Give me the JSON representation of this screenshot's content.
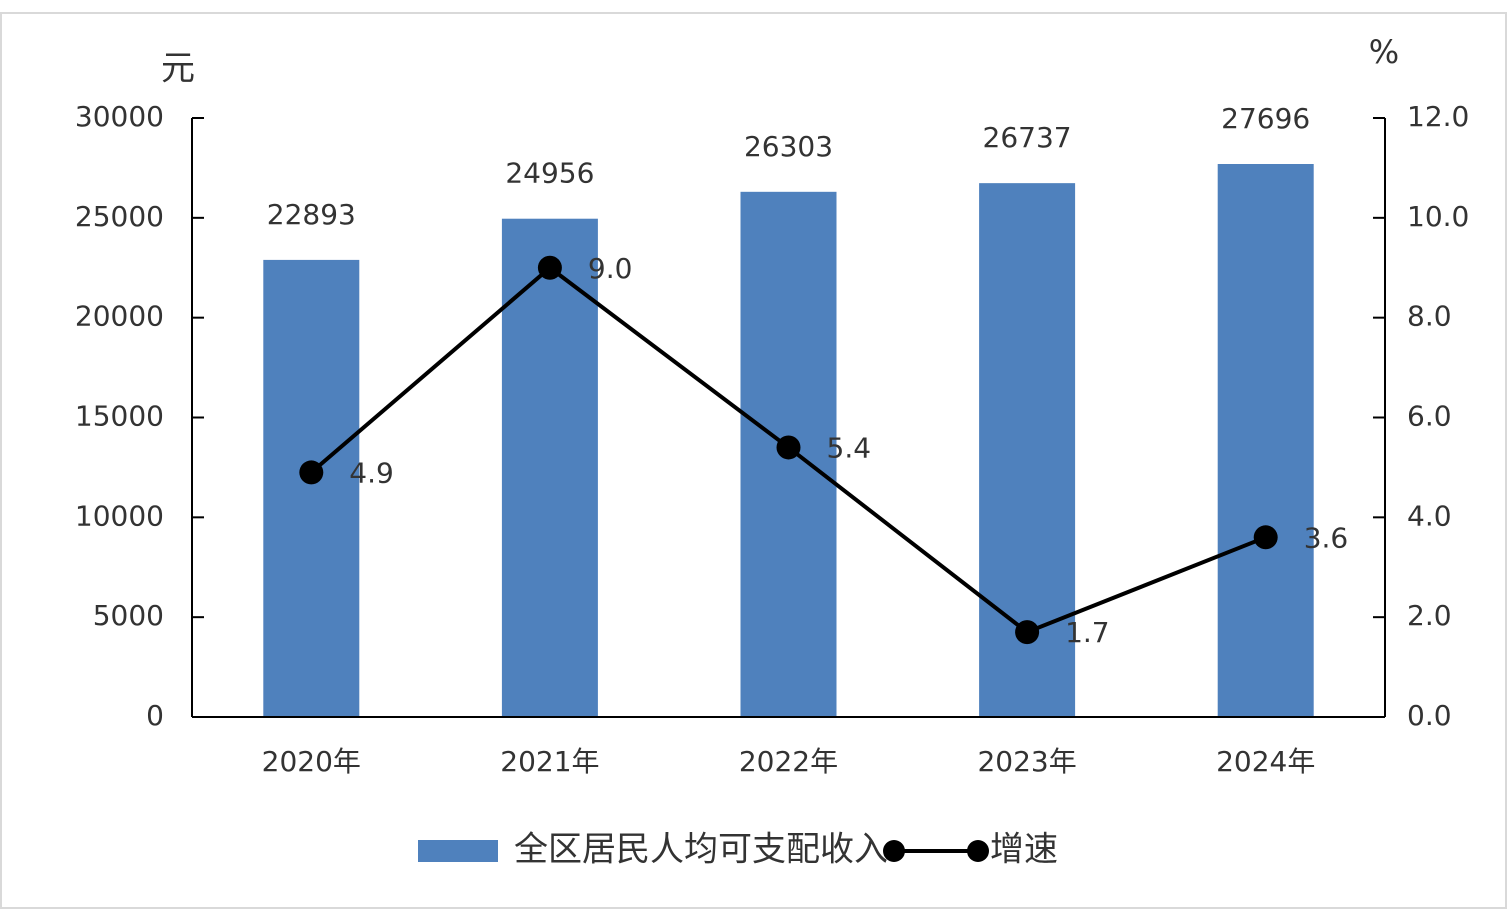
{
  "chart_data": {
    "type": "bar-line",
    "y_label": "元",
    "y2_label": "%",
    "categories": [
      "2020年",
      "2021年",
      "2022年",
      "2023年",
      "2024年"
    ],
    "series": [
      {
        "name": "全区居民人均可支配收入",
        "type": "bar",
        "color": "#4f81bd",
        "values": [
          22893,
          24956,
          26303,
          26737,
          27696
        ]
      },
      {
        "name": "增速",
        "type": "line",
        "axis": "y2",
        "color": "#000000",
        "values": [
          4.9,
          9.0,
          5.4,
          1.7,
          3.6
        ],
        "value_labels": [
          "4.9",
          "9.0",
          "5.4",
          "1.7",
          "3.6"
        ]
      }
    ],
    "ylim": [
      0,
      30000
    ],
    "yticks": [
      0,
      5000,
      10000,
      15000,
      20000,
      25000,
      30000
    ],
    "y2lim": [
      0,
      12
    ],
    "y2ticks": [
      {
        "value": 0,
        "label": "0.0"
      },
      {
        "value": 2,
        "label": "2.0"
      },
      {
        "value": 4,
        "label": "4.0"
      },
      {
        "value": 6,
        "label": "6.0"
      },
      {
        "value": 8,
        "label": "8.0"
      },
      {
        "value": 10,
        "label": "10.0"
      },
      {
        "value": 12,
        "label": "12.0"
      }
    ],
    "legend": "bottom",
    "grid": false
  }
}
